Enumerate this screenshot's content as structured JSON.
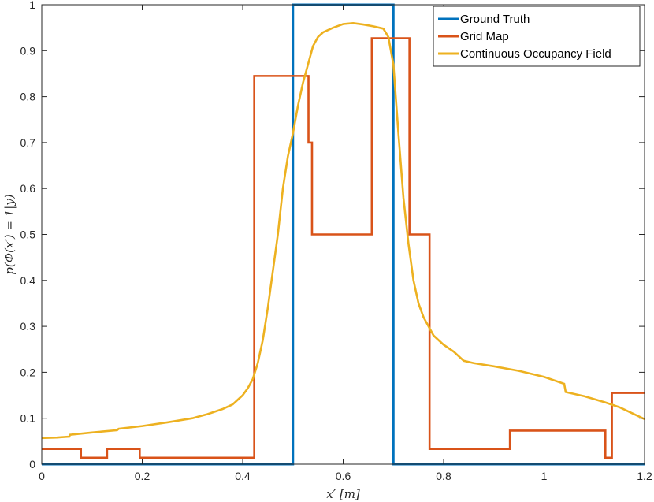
{
  "chart_data": {
    "type": "line",
    "xlabel": "x′ [m]",
    "ylabel": "p(Φ(x′) = 1|y)",
    "xlim": [
      0,
      1.2
    ],
    "ylim": [
      0,
      1
    ],
    "xticks": [
      "0",
      "0.2",
      "0.4",
      "0.6",
      "0.8",
      "1",
      "1.2"
    ],
    "yticks": [
      "0",
      "0.1",
      "0.2",
      "0.3",
      "0.4",
      "0.5",
      "0.6",
      "0.7",
      "0.8",
      "0.9",
      "1"
    ],
    "grid": false,
    "legend_position": "top-right",
    "series": [
      {
        "name": "Ground Truth",
        "color": "#0072BD",
        "step": true,
        "points": [
          [
            0,
            0
          ],
          [
            0.5,
            0
          ],
          [
            0.5,
            1
          ],
          [
            0.7,
            1
          ],
          [
            0.7,
            0
          ],
          [
            1.2,
            0
          ]
        ]
      },
      {
        "name": "Grid Map",
        "color": "#D95319",
        "step": true,
        "points": [
          [
            0,
            0.033
          ],
          [
            0.078,
            0.033
          ],
          [
            0.078,
            0.014
          ],
          [
            0.13,
            0.014
          ],
          [
            0.13,
            0.033
          ],
          [
            0.195,
            0.033
          ],
          [
            0.195,
            0.014
          ],
          [
            0.423,
            0.014
          ],
          [
            0.423,
            0.845
          ],
          [
            0.531,
            0.845
          ],
          [
            0.531,
            0.7
          ],
          [
            0.538,
            0.7
          ],
          [
            0.538,
            0.5
          ],
          [
            0.657,
            0.5
          ],
          [
            0.657,
            0.927
          ],
          [
            0.732,
            0.927
          ],
          [
            0.732,
            0.5
          ],
          [
            0.772,
            0.5
          ],
          [
            0.772,
            0.033
          ],
          [
            0.932,
            0.033
          ],
          [
            0.932,
            0.073
          ],
          [
            1.122,
            0.073
          ],
          [
            1.122,
            0.014
          ],
          [
            1.135,
            0.014
          ],
          [
            1.135,
            0.155
          ],
          [
            1.2,
            0.155
          ]
        ]
      },
      {
        "name": "Continuous Occupancy Field",
        "color": "#EDB120",
        "step": false,
        "points": [
          [
            0,
            0.057
          ],
          [
            0.03,
            0.058
          ],
          [
            0.055,
            0.06
          ],
          [
            0.056,
            0.064
          ],
          [
            0.1,
            0.069
          ],
          [
            0.15,
            0.074
          ],
          [
            0.153,
            0.077
          ],
          [
            0.2,
            0.083
          ],
          [
            0.25,
            0.091
          ],
          [
            0.3,
            0.1
          ],
          [
            0.33,
            0.109
          ],
          [
            0.36,
            0.12
          ],
          [
            0.38,
            0.13
          ],
          [
            0.39,
            0.14
          ],
          [
            0.4,
            0.15
          ],
          [
            0.41,
            0.165
          ],
          [
            0.42,
            0.185
          ],
          [
            0.43,
            0.22
          ],
          [
            0.44,
            0.27
          ],
          [
            0.45,
            0.34
          ],
          [
            0.46,
            0.42
          ],
          [
            0.47,
            0.5
          ],
          [
            0.48,
            0.6
          ],
          [
            0.49,
            0.67
          ],
          [
            0.5,
            0.72
          ],
          [
            0.51,
            0.78
          ],
          [
            0.52,
            0.83
          ],
          [
            0.53,
            0.87
          ],
          [
            0.54,
            0.91
          ],
          [
            0.55,
            0.93
          ],
          [
            0.56,
            0.94
          ],
          [
            0.58,
            0.95
          ],
          [
            0.6,
            0.958
          ],
          [
            0.62,
            0.96
          ],
          [
            0.64,
            0.957
          ],
          [
            0.66,
            0.953
          ],
          [
            0.68,
            0.948
          ],
          [
            0.69,
            0.93
          ],
          [
            0.7,
            0.87
          ],
          [
            0.71,
            0.72
          ],
          [
            0.72,
            0.58
          ],
          [
            0.73,
            0.48
          ],
          [
            0.74,
            0.4
          ],
          [
            0.75,
            0.35
          ],
          [
            0.76,
            0.32
          ],
          [
            0.78,
            0.28
          ],
          [
            0.8,
            0.26
          ],
          [
            0.82,
            0.245
          ],
          [
            0.84,
            0.225
          ],
          [
            0.86,
            0.22
          ],
          [
            0.9,
            0.213
          ],
          [
            0.95,
            0.203
          ],
          [
            1.0,
            0.19
          ],
          [
            1.04,
            0.175
          ],
          [
            1.043,
            0.157
          ],
          [
            1.08,
            0.148
          ],
          [
            1.12,
            0.135
          ],
          [
            1.15,
            0.124
          ],
          [
            1.2,
            0.098
          ]
        ]
      }
    ]
  }
}
